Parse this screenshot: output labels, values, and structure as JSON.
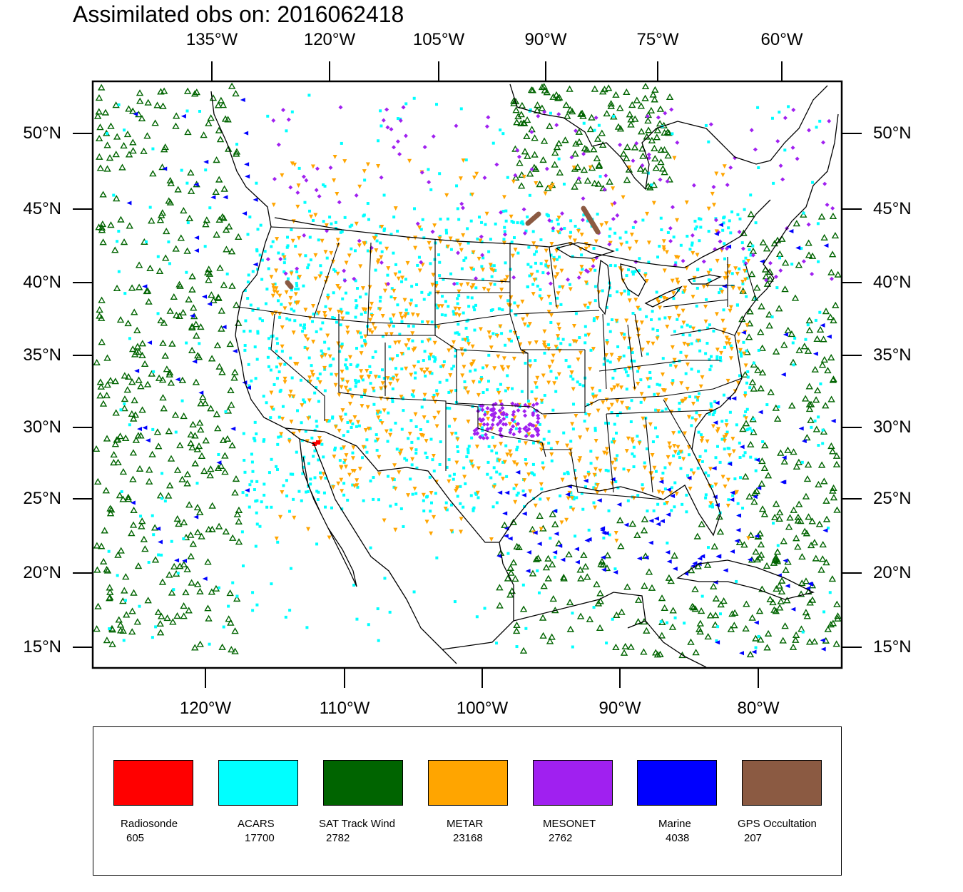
{
  "title": "Assimilated obs on: 2016062418",
  "axes": {
    "top_ticks": [
      "135°W",
      "120°W",
      "105°W",
      "90°W",
      "75°W",
      "60°W"
    ],
    "bottom_ticks": [
      "120°W",
      "110°W",
      "100°W",
      "90°W",
      "80°W"
    ],
    "left_ticks": [
      "50°N",
      "45°N",
      "40°N",
      "35°N",
      "30°N",
      "25°N",
      "20°N",
      "15°N"
    ],
    "right_ticks": [
      "50°N",
      "45°N",
      "40°N",
      "35°N",
      "30°N",
      "25°N",
      "20°N",
      "15°N"
    ]
  },
  "legend": [
    {
      "name": "Radiosonde",
      "count": "605",
      "color": "#ff0000"
    },
    {
      "name": "ACARS",
      "count": "17700",
      "color": "#00ffff"
    },
    {
      "name": "SAT Track Wind",
      "count": "2782",
      "color": "#006400"
    },
    {
      "name": "METAR",
      "count": "23168",
      "color": "#ffa500"
    },
    {
      "name": "MESONET",
      "count": "2762",
      "color": "#a020f0"
    },
    {
      "name": "Marine",
      "count": "4038",
      "color": "#0000ff"
    },
    {
      "name": "GPS Occultation",
      "count": "207",
      "color": "#8b5a42"
    }
  ]
}
